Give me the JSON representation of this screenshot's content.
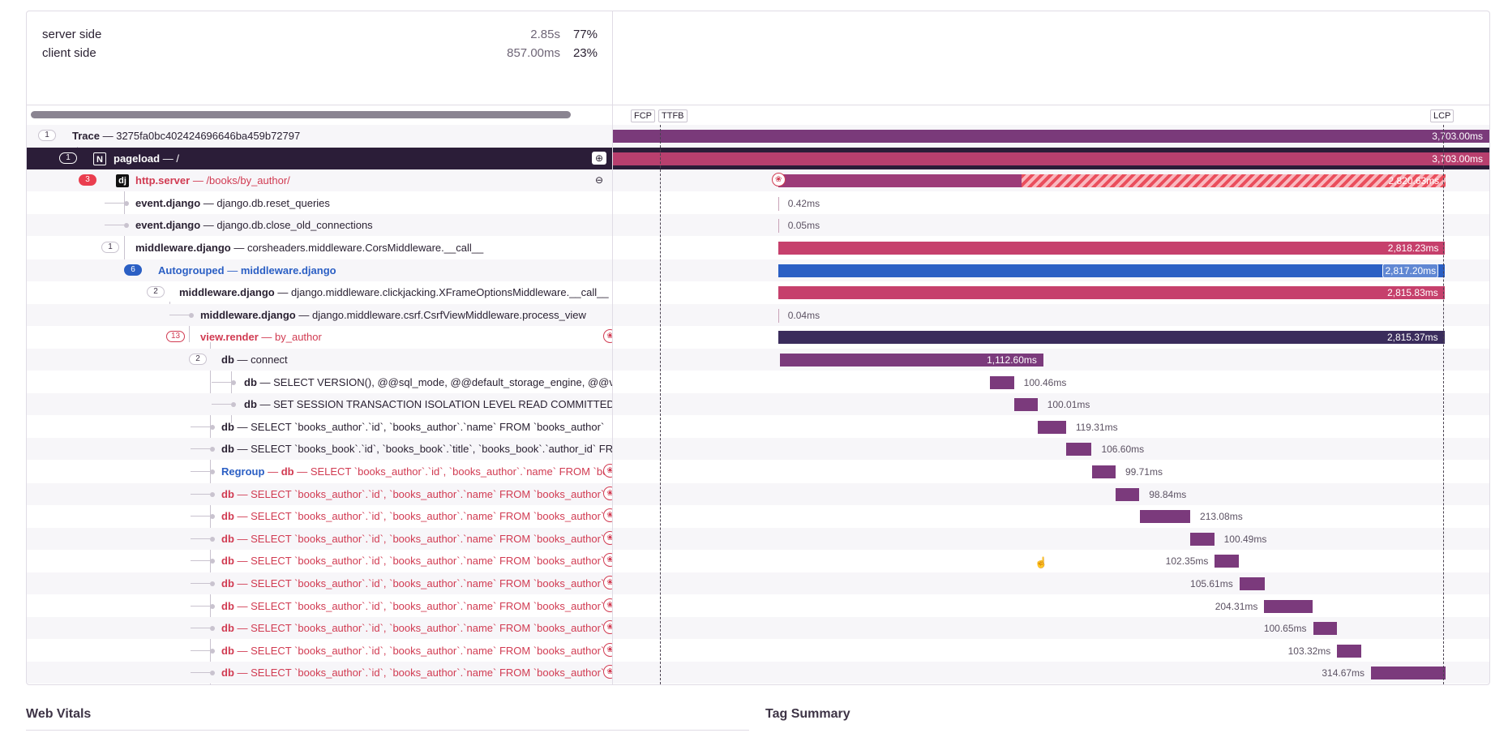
{
  "summary": [
    {
      "label": "server side",
      "duration": "2.85s",
      "percent": "77%"
    },
    {
      "label": "client side",
      "duration": "857.00ms",
      "percent": "23%"
    }
  ],
  "web_vitals": [
    "FCP",
    "TTFB",
    "LCP"
  ],
  "sections": {
    "web_vitals": "Web Vitals",
    "tag_summary": "Tag Summary"
  },
  "colors": {
    "purple": "#7a3a7a",
    "pink": "#c6406c",
    "blue": "#2b5fc4",
    "navy": "#3a2c5c",
    "db": "#7b3a7c",
    "selected_row": "#2b1d38"
  },
  "timeline": {
    "start_ms": 0,
    "end_ms": 3703.0
  },
  "rows": [
    {
      "count": "1",
      "op": "Trace",
      "desc": "3275fa0bc402424696646ba459b72797",
      "duration": "3,703.00ms",
      "start_ms": 0,
      "dur_ms": 3703.0,
      "color": "#7a3a7a"
    },
    {
      "count": "1",
      "op": "pageload",
      "desc": "/",
      "project_icon": "next-icon",
      "project_glyph": "N",
      "duration": "3,703.00ms",
      "start_ms": 0,
      "dur_ms": 3703.0,
      "color": "#b83f6e"
    },
    {
      "count": "3",
      "op": "http.server",
      "desc": "/books/by_author/",
      "project_icon": "django-icon",
      "project_glyph": "dj",
      "duration": "2,820.63ms",
      "start_ms": 698,
      "dur_ms": 2820.63,
      "color": "#9c3b78"
    },
    {
      "op": "event.django",
      "desc": "django.db.reset_queries",
      "duration": "0.42ms",
      "start_ms": 698,
      "dur_ms": 0.42
    },
    {
      "op": "event.django",
      "desc": "django.db.close_old_connections",
      "duration": "0.05ms",
      "start_ms": 698,
      "dur_ms": 0.05
    },
    {
      "count": "1",
      "op": "middleware.django",
      "desc": "corsheaders.middleware.CorsMiddleware.__call__",
      "duration": "2,818.23ms",
      "start_ms": 698,
      "dur_ms": 2818.23,
      "color": "#c6406c"
    },
    {
      "count": "6",
      "prefix": "Autogrouped",
      "op": "middleware.django",
      "desc": "",
      "duration": "2,817.20ms",
      "start_ms": 698,
      "dur_ms": 2817.2,
      "color": "#2b5fc4"
    },
    {
      "count": "2",
      "op": "middleware.django",
      "desc": "django.middleware.clickjacking.XFrameOptionsMiddleware.__call__",
      "duration": "2,815.83ms",
      "start_ms": 698,
      "dur_ms": 2815.83,
      "color": "#c6406c"
    },
    {
      "op": "middleware.django",
      "desc": "django.middleware.csrf.CsrfViewMiddleware.process_view",
      "duration": "0.04ms",
      "start_ms": 698,
      "dur_ms": 0.04
    },
    {
      "count": "13",
      "op": "view.render",
      "desc": "by_author",
      "duration": "2,815.37ms",
      "start_ms": 698,
      "dur_ms": 2815.37,
      "color": "#3a2c5c"
    },
    {
      "count": "2",
      "op": "db",
      "desc": "connect",
      "duration": "1,112.60ms",
      "start_ms": 706,
      "dur_ms": 1112.6,
      "color": "#7b3a7c"
    },
    {
      "op": "db",
      "desc": "SELECT VERSION(), @@sql_mode, @@default_storage_engine, @@version_comment",
      "duration": "100.46ms",
      "start_ms": 1594,
      "dur_ms": 100.46,
      "color": "#7b3a7c"
    },
    {
      "op": "db",
      "desc": "SET SESSION TRANSACTION ISOLATION LEVEL READ COMMITTED",
      "duration": "100.01ms",
      "start_ms": 1694,
      "dur_ms": 100.01,
      "color": "#7b3a7c"
    },
    {
      "op": "db",
      "desc": "SELECT `books_author`.`id`, `books_author`.`name` FROM `books_author`",
      "duration": "119.31ms",
      "start_ms": 1795,
      "dur_ms": 119.31,
      "color": "#7b3a7c"
    },
    {
      "op": "db",
      "desc": "SELECT `books_book`.`id`, `books_book`.`title`, `books_book`.`author_id` FROM `books_book`",
      "duration": "106.60ms",
      "start_ms": 1916,
      "dur_ms": 106.6,
      "color": "#7b3a7c"
    },
    {
      "prefix": "Regroup",
      "op": "db",
      "desc": "SELECT `books_author`.`id`, `books_author`.`name` FROM `books_author`",
      "duration": "99.71ms",
      "start_ms": 2024,
      "dur_ms": 99.71,
      "color": "#7b3a7c"
    },
    {
      "op": "db",
      "desc": "SELECT `books_author`.`id`, `books_author`.`name` FROM `books_author`",
      "duration": "98.84ms",
      "start_ms": 2125,
      "dur_ms": 98.84,
      "color": "#7b3a7c"
    },
    {
      "op": "db",
      "desc": "SELECT `books_author`.`id`, `books_author`.`name` FROM `books_author`",
      "duration": "213.08ms",
      "start_ms": 2226,
      "dur_ms": 213.08,
      "color": "#7b3a7c"
    },
    {
      "op": "db",
      "desc": "SELECT `books_author`.`id`, `books_author`.`name` FROM `books_author`",
      "duration": "100.49ms",
      "start_ms": 2440,
      "dur_ms": 100.49,
      "color": "#7b3a7c"
    },
    {
      "op": "db",
      "desc": "SELECT `books_author`.`id`, `books_author`.`name` FROM `books_author`",
      "duration": "102.35ms",
      "start_ms": 2543,
      "dur_ms": 102.35,
      "color": "#7b3a7c"
    },
    {
      "op": "db",
      "desc": "SELECT `books_author`.`id`, `books_author`.`name` FROM `books_author`",
      "duration": "105.61ms",
      "start_ms": 2647,
      "dur_ms": 105.61,
      "color": "#7b3a7c"
    },
    {
      "op": "db",
      "desc": "SELECT `books_author`.`id`, `books_author`.`name` FROM `books_author`",
      "duration": "204.31ms",
      "start_ms": 2752,
      "dur_ms": 204.31,
      "color": "#7b3a7c"
    },
    {
      "op": "db",
      "desc": "SELECT `books_author`.`id`, `books_author`.`name` FROM `books_author`",
      "duration": "100.65ms",
      "start_ms": 2958,
      "dur_ms": 100.65,
      "color": "#7b3a7c"
    },
    {
      "op": "db",
      "desc": "SELECT `books_author`.`id`, `books_author`.`name` FROM `books_author`",
      "duration": "103.32ms",
      "start_ms": 3060,
      "dur_ms": 103.32,
      "color": "#7b3a7c"
    },
    {
      "op": "db",
      "desc": "SELECT `books_author`.`id`, `books_author`.`name` FROM `books_author`",
      "duration": "314.67ms",
      "start_ms": 3203,
      "dur_ms": 314.67,
      "color": "#7b3a7c"
    }
  ]
}
